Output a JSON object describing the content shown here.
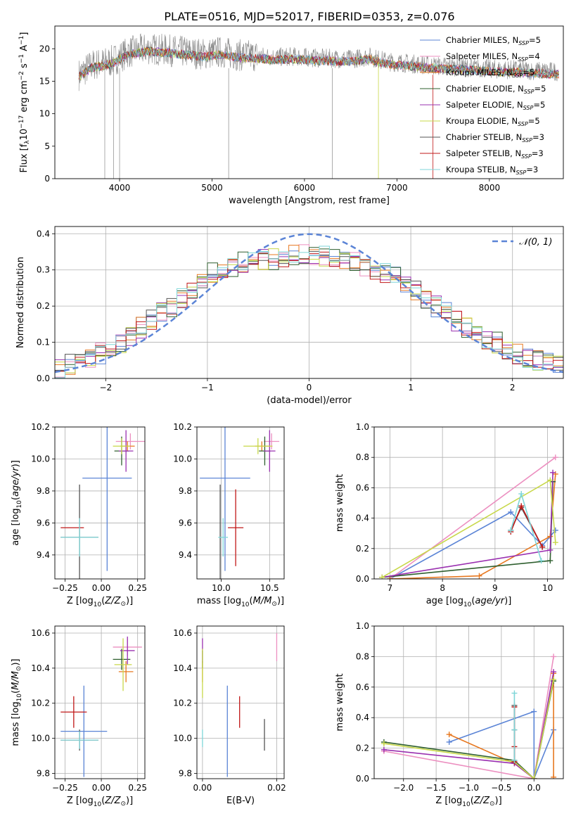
{
  "title": "PLATE=0516, MJD=52017, FIBERID=0353, z=0.076",
  "colors": {
    "Chabrier MILES": "#5b84d6",
    "Salpeter MILES": "#ec8fc0",
    "Kroupa MILES": "#e77820",
    "Chabrier ELODIE": "#2f5f2f",
    "Salpeter ELODIE": "#9a30b0",
    "Kroupa ELODIE": "#c8d84a",
    "Chabrier STELIB": "#555555",
    "Salpeter STELIB": "#c01818",
    "Kroupa STELIB": "#7fd6d8"
  },
  "chart_data": [
    {
      "id": "spectrum",
      "type": "line",
      "xlabel": "wavelength [Angstrom, rest frame]",
      "ylabel": "Flux [f",
      "xlim": [
        3300,
        8800
      ],
      "ylim": [
        0,
        23.5
      ],
      "xticks": [
        4000,
        5000,
        6000,
        7000,
        8000
      ],
      "yticks": [
        0,
        5,
        10,
        15,
        20
      ],
      "grid": false,
      "legend_placement": "top-right",
      "legend": [
        {
          "label": "Chabrier MILES, N",
          "n": "5"
        },
        {
          "label": "Salpeter MILES, N",
          "n": "4"
        },
        {
          "label": "Kroupa MILES, N",
          "n": "5"
        },
        {
          "label": "Chabrier ELODIE, N",
          "n": "5"
        },
        {
          "label": "Salpeter ELODIE, N",
          "n": "5"
        },
        {
          "label": "Kroupa ELODIE, N",
          "n": "5"
        },
        {
          "label": "Chabrier STELIB, N",
          "n": "3"
        },
        {
          "label": "Salpeter STELIB, N",
          "n": "3"
        },
        {
          "label": "Kroupa STELIB, N",
          "n": "3"
        }
      ],
      "observed_data_envelope": {
        "x": [
          3560,
          3700,
          3900,
          4100,
          4300,
          4500,
          4700,
          4900,
          5100,
          5300,
          5500,
          5700,
          5900,
          6100,
          6300,
          6500,
          6700,
          6900,
          7100,
          7300,
          7500,
          7700,
          7900,
          8100,
          8300,
          8500,
          8750
        ],
        "y": [
          16,
          17.5,
          18,
          19.5,
          20,
          19.8,
          19.5,
          19.2,
          19.5,
          19.0,
          18.9,
          18.7,
          18.8,
          18.6,
          18.5,
          18.4,
          18.8,
          18.0,
          17.8,
          17.5,
          17.3,
          17.2,
          17.0,
          16.8,
          16.8,
          16.6,
          16.5
        ]
      }
    },
    {
      "id": "residuals",
      "type": "bar",
      "xlabel": "(data-model)/error",
      "ylabel": "Normed distribution",
      "xlim": [
        -2.5,
        2.5
      ],
      "ylim": [
        0,
        0.42
      ],
      "xticks": [
        -2,
        -1,
        0,
        1,
        2
      ],
      "yticks": [
        0.0,
        0.1,
        0.2,
        0.3,
        0.4
      ],
      "grid": true,
      "legend_placement": "top-right",
      "legend": [
        {
          "label": "𝒩(0, 1)"
        }
      ],
      "bins": 50,
      "model_histogram_envelope": [
        0.03,
        0.04,
        0.05,
        0.06,
        0.07,
        0.08,
        0.1,
        0.12,
        0.14,
        0.16,
        0.18,
        0.2,
        0.22,
        0.25,
        0.27,
        0.29,
        0.3,
        0.31,
        0.32,
        0.32,
        0.33,
        0.33,
        0.33,
        0.34,
        0.34,
        0.34,
        0.34,
        0.33,
        0.33,
        0.32,
        0.31,
        0.3,
        0.29,
        0.28,
        0.26,
        0.24,
        0.22,
        0.2,
        0.18,
        0.16,
        0.14,
        0.12,
        0.11,
        0.1,
        0.08,
        0.07,
        0.06,
        0.05,
        0.05,
        0.04
      ]
    },
    {
      "id": "age-vs-Z",
      "type": "scatter",
      "xlabel": "Z [log",
      "ylabel": "age  [log",
      "xlim": [
        -0.32,
        0.3
      ],
      "ylim": [
        9.25,
        10.2
      ],
      "xticks": [
        -0.25,
        0.0,
        0.25
      ],
      "yticks": [
        9.4,
        9.6,
        9.8,
        10.0,
        10.2
      ],
      "grid": true,
      "points": [
        {
          "model": "Chabrier MILES",
          "x": 0.04,
          "y": 9.88,
          "xerr": 0.17,
          "yerr": 0.58
        },
        {
          "model": "Salpeter MILES",
          "x": 0.2,
          "y": 10.11,
          "xerr": 0.1,
          "yerr": 0.05
        },
        {
          "model": "Kroupa MILES",
          "x": 0.18,
          "y": 10.08,
          "xerr": 0.05,
          "yerr": 0.03
        },
        {
          "model": "Chabrier ELODIE",
          "x": 0.14,
          "y": 10.05,
          "xerr": 0.05,
          "yerr": 0.09
        },
        {
          "model": "Salpeter ELODIE",
          "x": 0.17,
          "y": 10.05,
          "xerr": 0.05,
          "yerr": 0.13
        },
        {
          "model": "Kroupa ELODIE",
          "x": 0.14,
          "y": 10.08,
          "xerr": 0.06,
          "yerr": 0.05
        },
        {
          "model": "Chabrier STELIB",
          "x": -0.15,
          "y": 9.51,
          "xerr": 0.13,
          "yerr": 0.33
        },
        {
          "model": "Salpeter STELIB",
          "x": -0.2,
          "y": 9.57,
          "xerr": 0.08,
          "yerr": 0.0
        },
        {
          "model": "Kroupa STELIB",
          "x": -0.15,
          "y": 9.51,
          "xerr": 0.13,
          "yerr": 0.12
        }
      ]
    },
    {
      "id": "age-vs-mass",
      "type": "scatter",
      "xlabel": "mass [log",
      "ylabel": "",
      "xlim": [
        9.75,
        10.65
      ],
      "ylim": [
        9.25,
        10.2
      ],
      "xticks": [
        10.0,
        10.5
      ],
      "yticks": [
        9.4,
        9.6,
        9.8,
        10.0,
        10.2
      ],
      "grid": true,
      "points": [
        {
          "model": "Chabrier MILES",
          "x": 10.04,
          "y": 9.88,
          "xerr": 0.26,
          "yerr": 0.58
        },
        {
          "model": "Salpeter MILES",
          "x": 10.52,
          "y": 10.11,
          "xerr": 0.08,
          "yerr": 0.05
        },
        {
          "model": "Kroupa MILES",
          "x": 10.42,
          "y": 10.08,
          "xerr": 0.07,
          "yerr": 0.03
        },
        {
          "model": "Chabrier ELODIE",
          "x": 10.45,
          "y": 10.05,
          "xerr": 0.06,
          "yerr": 0.09
        },
        {
          "model": "Salpeter ELODIE",
          "x": 10.5,
          "y": 10.05,
          "xerr": 0.06,
          "yerr": 0.13
        },
        {
          "model": "Kroupa ELODIE",
          "x": 10.38,
          "y": 10.08,
          "xerr": 0.15,
          "yerr": 0.05
        },
        {
          "model": "Chabrier STELIB",
          "x": 9.99,
          "y": 9.51,
          "xerr": 0.0,
          "yerr": 0.33
        },
        {
          "model": "Salpeter STELIB",
          "x": 10.15,
          "y": 9.57,
          "xerr": 0.08,
          "yerr": 0.24
        },
        {
          "model": "Kroupa STELIB",
          "x": 10.02,
          "y": 9.51,
          "xerr": 0.05,
          "yerr": 0.12
        }
      ]
    },
    {
      "id": "weight-vs-age",
      "type": "line",
      "xlabel": "age  [log",
      "ylabel": "mass weight",
      "xlim": [
        6.7,
        10.3
      ],
      "ylim": [
        0,
        1.0
      ],
      "xticks": [
        7,
        8,
        9,
        10
      ],
      "yticks": [
        0.0,
        0.2,
        0.4,
        0.6,
        0.8,
        1.0
      ],
      "grid": true,
      "series": [
        {
          "model": "Chabrier MILES",
          "x": [
            7.0,
            9.3,
            9.9,
            10.15
          ],
          "y": [
            0.0,
            0.44,
            0.22,
            0.32
          ]
        },
        {
          "model": "Salpeter MILES",
          "x": [
            7.0,
            10.15
          ],
          "y": [
            0.0,
            0.8
          ]
        },
        {
          "model": "Kroupa MILES",
          "x": [
            7.0,
            8.7,
            10.05,
            10.15
          ],
          "y": [
            0.0,
            0.02,
            0.28,
            0.69
          ]
        },
        {
          "model": "Chabrier ELODIE",
          "x": [
            6.85,
            10.05,
            10.1
          ],
          "y": [
            0.01,
            0.12,
            0.64
          ]
        },
        {
          "model": "Salpeter ELODIE",
          "x": [
            6.85,
            10.05,
            10.1
          ],
          "y": [
            0.01,
            0.19,
            0.7
          ]
        },
        {
          "model": "Kroupa ELODIE",
          "x": [
            6.85,
            10.05,
            10.15
          ],
          "y": [
            0.01,
            0.65,
            0.24
          ]
        },
        {
          "model": "Chabrier STELIB",
          "x": [
            9.3,
            9.5,
            9.9
          ],
          "y": [
            0.32,
            0.47,
            0.21
          ]
        },
        {
          "model": "Salpeter STELIB",
          "x": [
            9.3,
            9.5,
            9.9
          ],
          "y": [
            0.31,
            0.48,
            0.21
          ]
        },
        {
          "model": "Kroupa STELIB",
          "x": [
            9.3,
            9.5,
            9.88
          ],
          "y": [
            0.32,
            0.56,
            0.12
          ]
        }
      ]
    },
    {
      "id": "mass-vs-Z",
      "type": "scatter",
      "xlabel": "Z [log",
      "ylabel": "mass [log",
      "xlim": [
        -0.32,
        0.3
      ],
      "ylim": [
        9.77,
        10.64
      ],
      "xticks": [
        -0.25,
        0.0,
        0.25
      ],
      "yticks": [
        9.8,
        10.0,
        10.2,
        10.4,
        10.6
      ],
      "grid": true,
      "points": [
        {
          "model": "Chabrier MILES",
          "x": -0.12,
          "y": 10.04,
          "xerr": 0.16,
          "yerr": 0.26
        },
        {
          "model": "Salpeter MILES",
          "x": 0.18,
          "y": 10.52,
          "xerr": 0.1,
          "yerr": 0.05
        },
        {
          "model": "Kroupa MILES",
          "x": 0.17,
          "y": 10.38,
          "xerr": 0.05,
          "yerr": 0.06
        },
        {
          "model": "Chabrier ELODIE",
          "x": 0.14,
          "y": 10.45,
          "xerr": 0.06,
          "yerr": 0.06
        },
        {
          "model": "Salpeter ELODIE",
          "x": 0.18,
          "y": 10.5,
          "xerr": 0.05,
          "yerr": 0.08
        },
        {
          "model": "Kroupa ELODIE",
          "x": 0.15,
          "y": 10.42,
          "xerr": 0.06,
          "yerr": 0.15
        },
        {
          "model": "Chabrier STELIB",
          "x": -0.15,
          "y": 9.99,
          "xerr": 0.13,
          "yerr": 0.06
        },
        {
          "model": "Salpeter STELIB",
          "x": -0.19,
          "y": 10.15,
          "xerr": 0.09,
          "yerr": 0.09
        },
        {
          "model": "Kroupa STELIB",
          "x": -0.15,
          "y": 9.99,
          "xerr": 0.13,
          "yerr": 0.05
        }
      ]
    },
    {
      "id": "mass-vs-ebv",
      "type": "scatter",
      "xlabel": "E(B-V)",
      "ylabel": "",
      "xlim": [
        -0.0015,
        0.022
      ],
      "ylim": [
        9.77,
        10.64
      ],
      "xticks": [
        0.0,
        0.02
      ],
      "yticks": [
        9.8,
        10.0,
        10.2,
        10.4,
        10.6
      ],
      "grid": true,
      "points": [
        {
          "model": "Chabrier MILES",
          "x": 0.0067,
          "y": 10.04,
          "xerr": 0,
          "yerr": 0.26
        },
        {
          "model": "Salpeter MILES",
          "x": 0.02,
          "y": 10.52,
          "xerr": 0,
          "yerr": 0.08
        },
        {
          "model": "Kroupa MILES",
          "x": 0.0,
          "y": 10.38,
          "xerr": 0,
          "yerr": 0.06
        },
        {
          "model": "Chabrier ELODIE",
          "x": 0.0,
          "y": 10.45,
          "xerr": 0,
          "yerr": 0.05
        },
        {
          "model": "Salpeter ELODIE",
          "x": 0.0,
          "y": 10.5,
          "xerr": 0,
          "yerr": 0.07
        },
        {
          "model": "Kroupa ELODIE",
          "x": 0.0,
          "y": 10.37,
          "xerr": 0,
          "yerr": 0.14
        },
        {
          "model": "Chabrier STELIB",
          "x": 0.0167,
          "y": 10.02,
          "xerr": 0,
          "yerr": 0.09
        },
        {
          "model": "Salpeter STELIB",
          "x": 0.01,
          "y": 10.15,
          "xerr": 0,
          "yerr": 0.09
        },
        {
          "model": "Kroupa STELIB",
          "x": 0.0,
          "y": 10.0,
          "xerr": 0,
          "yerr": 0.05
        }
      ]
    },
    {
      "id": "weight-vs-Z",
      "type": "line",
      "xlabel": "Z [log",
      "ylabel": "mass weight",
      "xlim": [
        -2.45,
        0.45
      ],
      "ylim": [
        0,
        1.0
      ],
      "xticks": [
        -2.0,
        -1.5,
        -1.0,
        -0.5,
        0.0
      ],
      "yticks": [
        0.0,
        0.2,
        0.4,
        0.6,
        0.8,
        1.0
      ],
      "grid": true,
      "series": [
        {
          "model": "Chabrier MILES",
          "x": [
            -1.3,
            0.0,
            0.0,
            0.3
          ],
          "y": [
            0.24,
            0.44,
            0.0,
            0.32
          ]
        },
        {
          "model": "Salpeter MILES",
          "x": [
            -2.3,
            0.0,
            0.3
          ],
          "y": [
            0.18,
            0.0,
            0.8
          ]
        },
        {
          "model": "Kroupa MILES",
          "x": [
            -1.3,
            -0.3,
            0.0,
            0.3,
            0.3
          ],
          "y": [
            0.29,
            0.1,
            0.0,
            0.69,
            0.01
          ]
        },
        {
          "model": "Chabrier ELODIE",
          "x": [
            -2.3,
            -0.3,
            0.0,
            0.3
          ],
          "y": [
            0.24,
            0.12,
            0.0,
            0.64
          ]
        },
        {
          "model": "Salpeter ELODIE",
          "x": [
            -2.3,
            -0.3,
            0.0,
            0.3
          ],
          "y": [
            0.19,
            0.1,
            0.0,
            0.7
          ]
        },
        {
          "model": "Kroupa ELODIE",
          "x": [
            -2.3,
            -0.3,
            0.0,
            0.3
          ],
          "y": [
            0.23,
            0.11,
            0.0,
            0.65
          ]
        },
        {
          "model": "Chabrier STELIB",
          "x": [
            -0.3,
            -0.3,
            -0.3
          ],
          "y": [
            0.11,
            0.32,
            0.48
          ]
        },
        {
          "model": "Salpeter STELIB",
          "x": [
            -0.3,
            -0.3,
            -0.3
          ],
          "y": [
            0.11,
            0.21,
            0.47
          ]
        },
        {
          "model": "Kroupa STELIB",
          "x": [
            -0.3,
            -0.3,
            -0.3
          ],
          "y": [
            0.12,
            0.32,
            0.56
          ]
        }
      ]
    }
  ]
}
